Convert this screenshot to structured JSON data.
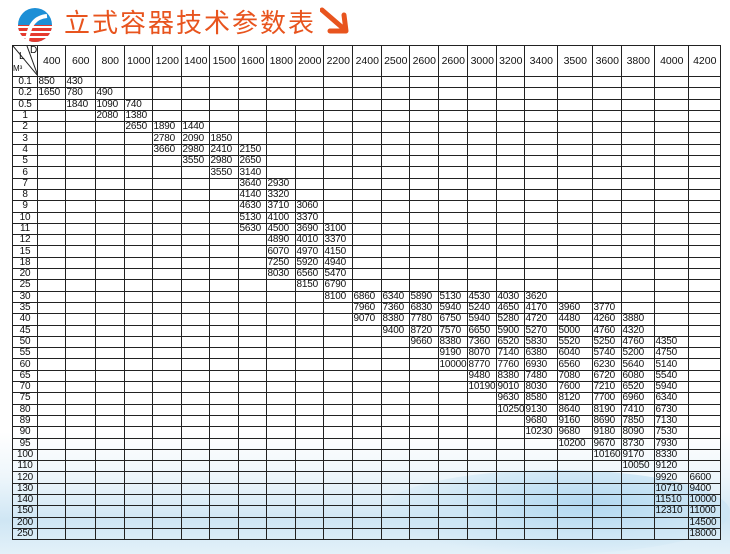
{
  "header": {
    "title": "立式容器技术参数表",
    "title_color": "#e8541e",
    "logo": "company-logo",
    "arrow_icon": "arrow-down-right-icon"
  },
  "table": {
    "corner": {
      "d_label": "D",
      "l_label": "L",
      "m_label": "M³"
    },
    "columns": [
      "400",
      "600",
      "800",
      "1000",
      "1200",
      "1400",
      "1500",
      "1600",
      "1800",
      "2000",
      "2200",
      "2400",
      "2500",
      "2600",
      "2600",
      "3000",
      "3200",
      "3400",
      "3500",
      "3600",
      "3800",
      "4000",
      "4200"
    ],
    "rows": [
      {
        "label": "0.1",
        "start_col": 0,
        "values": [
          "850",
          "430"
        ]
      },
      {
        "label": "0.2",
        "start_col": 0,
        "values": [
          "1650",
          "780",
          "490"
        ]
      },
      {
        "label": "0.5",
        "start_col": 1,
        "values": [
          "1840",
          "1090",
          "740"
        ]
      },
      {
        "label": "1",
        "start_col": 2,
        "values": [
          "2080",
          "1380"
        ]
      },
      {
        "label": "2",
        "start_col": 3,
        "values": [
          "2650",
          "1890",
          "1440"
        ]
      },
      {
        "label": "3",
        "start_col": 4,
        "values": [
          "2780",
          "2090",
          "1850"
        ]
      },
      {
        "label": "4",
        "start_col": 4,
        "values": [
          "3660",
          "2980",
          "2410",
          "2150"
        ]
      },
      {
        "label": "5",
        "start_col": 5,
        "values": [
          "3550",
          "2980",
          "2650"
        ]
      },
      {
        "label": "6",
        "start_col": 6,
        "values": [
          "3550",
          "3140"
        ]
      },
      {
        "label": "7",
        "start_col": 7,
        "values": [
          "3640",
          "2930"
        ]
      },
      {
        "label": "8",
        "start_col": 7,
        "values": [
          "4140",
          "3320"
        ]
      },
      {
        "label": "9",
        "start_col": 7,
        "values": [
          "4630",
          "3710",
          "3060"
        ]
      },
      {
        "label": "10",
        "start_col": 7,
        "values": [
          "5130",
          "4100",
          "3370"
        ]
      },
      {
        "label": "11",
        "start_col": 7,
        "values": [
          "5630",
          "4500",
          "3690",
          "3100"
        ]
      },
      {
        "label": "12",
        "start_col": 8,
        "values": [
          "4890",
          "4010",
          "3370"
        ]
      },
      {
        "label": "15",
        "start_col": 8,
        "values": [
          "6070",
          "4970",
          "4150"
        ]
      },
      {
        "label": "18",
        "start_col": 8,
        "values": [
          "7250",
          "5920",
          "4940"
        ]
      },
      {
        "label": "20",
        "start_col": 8,
        "values": [
          "8030",
          "6560",
          "5470"
        ]
      },
      {
        "label": "25",
        "start_col": 9,
        "values": [
          "8150",
          "6790"
        ]
      },
      {
        "label": "30",
        "start_col": 10,
        "values": [
          "8100",
          "6860",
          "6340",
          "5890",
          "5130",
          "4530",
          "4030",
          "3620"
        ]
      },
      {
        "label": "35",
        "start_col": 11,
        "values": [
          "7960",
          "7360",
          "6830",
          "5940",
          "5240",
          "4650",
          "4170",
          "3960",
          "3770"
        ]
      },
      {
        "label": "40",
        "start_col": 11,
        "values": [
          "9070",
          "8380",
          "7780",
          "6750",
          "5940",
          "5280",
          "4720",
          "4480",
          "4260",
          "3880"
        ]
      },
      {
        "label": "45",
        "start_col": 12,
        "values": [
          "9400",
          "8720",
          "7570",
          "6650",
          "5900",
          "5270",
          "5000",
          "4760",
          "4320"
        ]
      },
      {
        "label": "50",
        "start_col": 13,
        "values": [
          "9660",
          "8380",
          "7360",
          "6520",
          "5830",
          "5520",
          "5250",
          "4760",
          "4350"
        ]
      },
      {
        "label": "55",
        "start_col": 14,
        "values": [
          "9190",
          "8070",
          "7140",
          "6380",
          "6040",
          "5740",
          "5200",
          "4750"
        ]
      },
      {
        "label": "60",
        "start_col": 14,
        "values": [
          "10000",
          "8770",
          "7760",
          "6930",
          "6560",
          "6230",
          "5640",
          "5140"
        ]
      },
      {
        "label": "65",
        "start_col": 15,
        "values": [
          "9480",
          "8380",
          "7480",
          "7080",
          "6720",
          "6080",
          "5540"
        ]
      },
      {
        "label": "70",
        "start_col": 15,
        "values": [
          "10190",
          "9010",
          "8030",
          "7600",
          "7210",
          "6520",
          "5940"
        ]
      },
      {
        "label": "75",
        "start_col": 16,
        "values": [
          "9630",
          "8580",
          "8120",
          "7700",
          "6960",
          "6340"
        ]
      },
      {
        "label": "80",
        "start_col": 16,
        "values": [
          "10250",
          "9130",
          "8640",
          "8190",
          "7410",
          "6730"
        ]
      },
      {
        "label": "89",
        "start_col": 17,
        "values": [
          "9680",
          "9160",
          "8690",
          "7850",
          "7130"
        ]
      },
      {
        "label": "90",
        "start_col": 17,
        "values": [
          "10230",
          "9680",
          "9180",
          "8090",
          "7530"
        ]
      },
      {
        "label": "95",
        "start_col": 18,
        "values": [
          "10200",
          "9670",
          "8730",
          "7930"
        ]
      },
      {
        "label": "100",
        "start_col": 19,
        "values": [
          "10160",
          "9170",
          "8330"
        ]
      },
      {
        "label": "110",
        "start_col": 20,
        "values": [
          "10050",
          "9120"
        ]
      },
      {
        "label": "120",
        "start_col": 21,
        "values": [
          "9920",
          "6600"
        ]
      },
      {
        "label": "130",
        "start_col": 21,
        "values": [
          "10710",
          "9400"
        ]
      },
      {
        "label": "140",
        "start_col": 21,
        "values": [
          "11510",
          "10000"
        ]
      },
      {
        "label": "150",
        "start_col": 21,
        "values": [
          "12310",
          "11000"
        ]
      },
      {
        "label": "200",
        "start_col": 22,
        "values": [
          "14500"
        ]
      },
      {
        "label": "250",
        "start_col": 22,
        "values": [
          "18000"
        ]
      }
    ]
  }
}
